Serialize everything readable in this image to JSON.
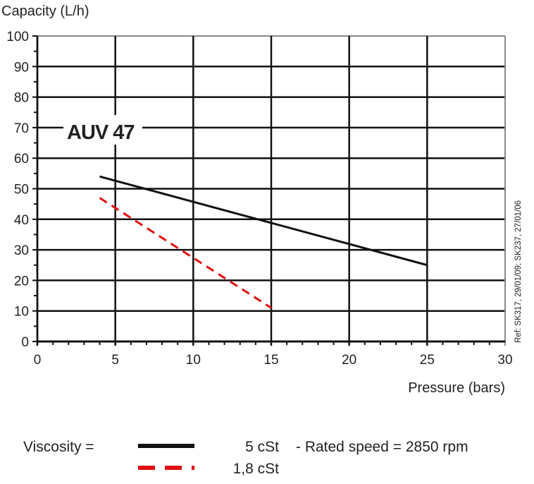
{
  "chart_data": {
    "type": "line",
    "title": "AUV 47",
    "ylabel": "Capacity (L/h)",
    "xlabel": "Pressure (bars)",
    "xlim": [
      0,
      30
    ],
    "ylim": [
      0,
      100
    ],
    "xticks": [
      0,
      5,
      10,
      15,
      20,
      25,
      30
    ],
    "yticks": [
      0,
      10,
      20,
      30,
      40,
      50,
      60,
      70,
      80,
      90,
      100
    ],
    "grid": true,
    "series": [
      {
        "name": "5 cSt",
        "color": "#111111",
        "dashed": false,
        "x": [
          4,
          25
        ],
        "y": [
          54,
          25
        ]
      },
      {
        "name": "1,8 cSt",
        "color": "#e01010",
        "dashed": true,
        "x": [
          4,
          15
        ],
        "y": [
          47,
          11
        ]
      }
    ],
    "legend": {
      "label": "Viscosity =",
      "note": "- Rated speed = 2850 rpm",
      "placement": "bottom"
    },
    "reference": "Ref: SK317, 29/01/09; SK237, 27/01/06"
  }
}
